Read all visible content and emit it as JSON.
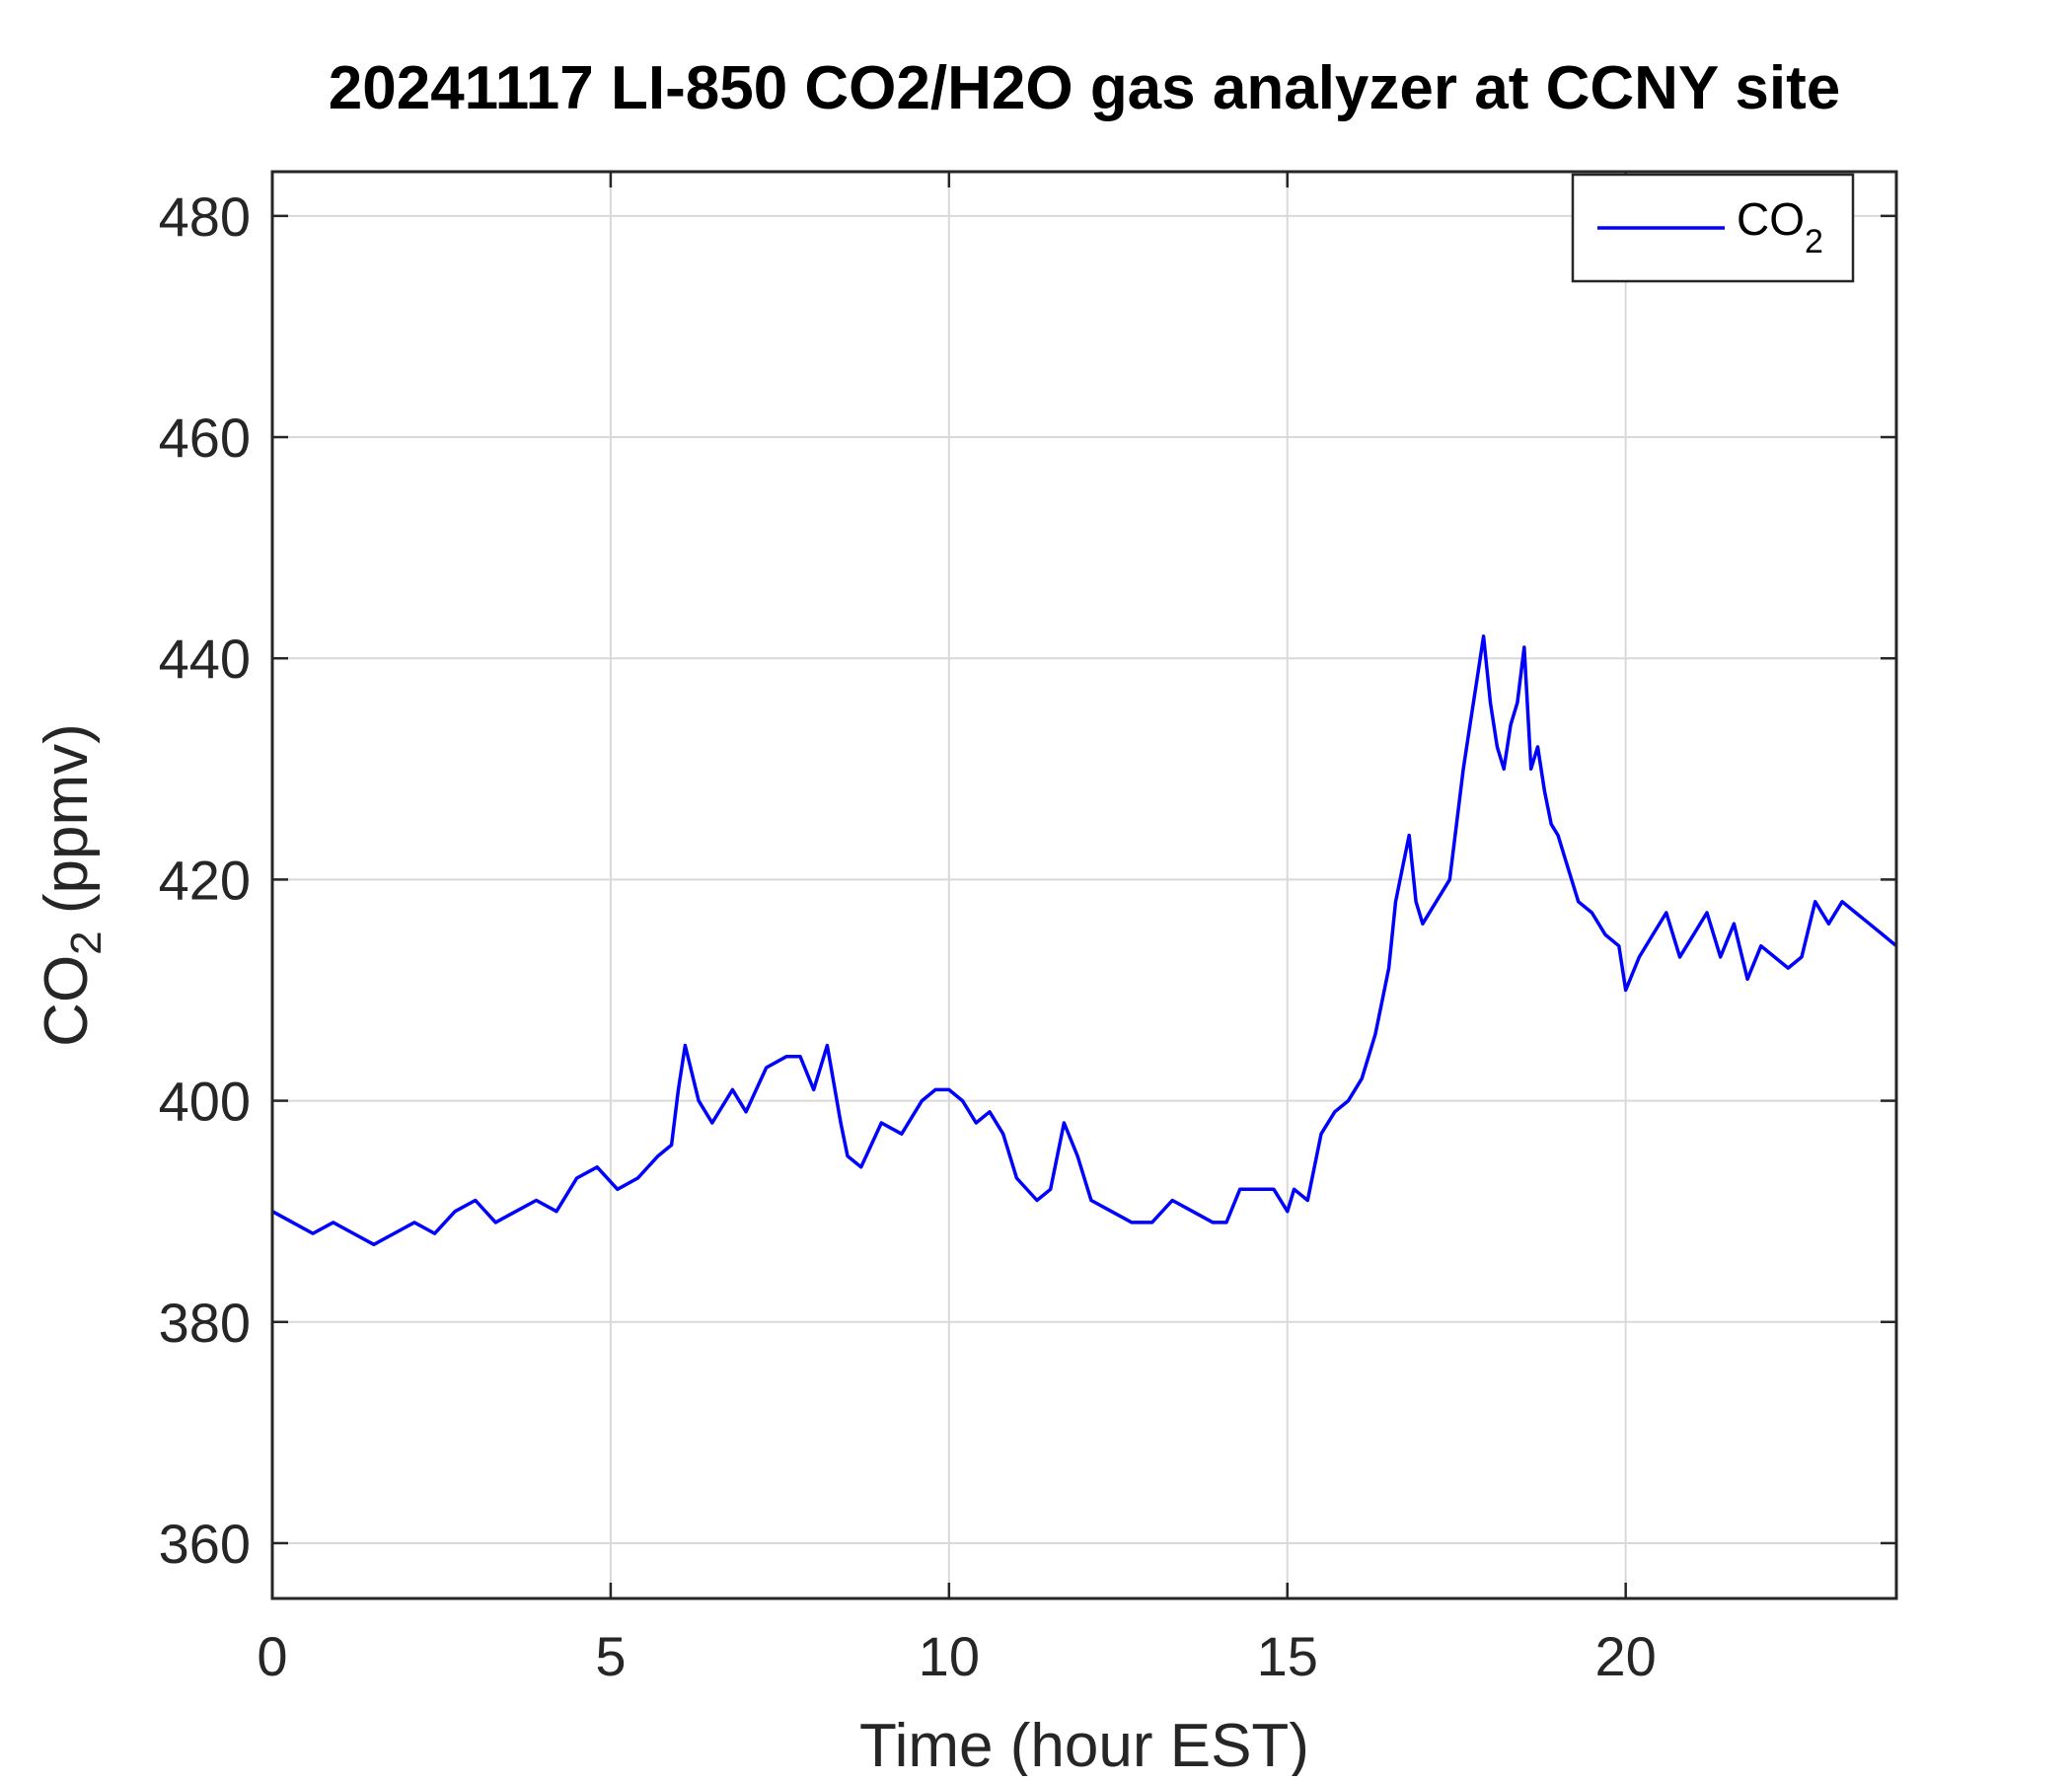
{
  "chart_data": {
    "type": "line",
    "title": "20241117 LI-850 CO2/H2O gas analyzer at CCNY site",
    "xlabel": "Time (hour EST)",
    "ylabel": {
      "main": "CO",
      "subscript": "2",
      "suffix": " (ppmv)"
    },
    "xlim": [
      0,
      24
    ],
    "ylim": [
      355,
      484
    ],
    "xticks": [
      0,
      5,
      10,
      15,
      20
    ],
    "yticks": [
      360,
      380,
      400,
      420,
      440,
      460,
      480
    ],
    "grid": true,
    "legend": {
      "position": "top-right",
      "entries": [
        {
          "main": "CO",
          "subscript": "2"
        }
      ]
    },
    "series": [
      {
        "name": "CO2",
        "color": "#0000ff",
        "x": [
          0,
          0.3,
          0.6,
          0.9,
          1.2,
          1.5,
          1.8,
          2.1,
          2.4,
          2.7,
          3.0,
          3.3,
          3.6,
          3.9,
          4.2,
          4.5,
          4.8,
          5.1,
          5.4,
          5.7,
          5.9,
          6.0,
          6.1,
          6.3,
          6.5,
          6.8,
          7.0,
          7.3,
          7.6,
          7.8,
          8.0,
          8.2,
          8.4,
          8.5,
          8.7,
          9.0,
          9.3,
          9.6,
          9.8,
          10.0,
          10.2,
          10.4,
          10.6,
          10.8,
          11.0,
          11.3,
          11.5,
          11.7,
          11.9,
          12.1,
          12.4,
          12.7,
          13.0,
          13.3,
          13.6,
          13.9,
          14.1,
          14.3,
          14.5,
          14.8,
          15.0,
          15.1,
          15.3,
          15.5,
          15.7,
          15.9,
          16.1,
          16.3,
          16.5,
          16.6,
          16.7,
          16.8,
          16.9,
          17.0,
          17.2,
          17.4,
          17.6,
          17.7,
          17.8,
          17.9,
          18.0,
          18.1,
          18.2,
          18.3,
          18.4,
          18.5,
          18.6,
          18.7,
          18.8,
          18.9,
          19.0,
          19.1,
          19.2,
          19.3,
          19.5,
          19.7,
          19.9,
          20.0,
          20.2,
          20.4,
          20.6,
          20.8,
          21.0,
          21.2,
          21.4,
          21.6,
          21.8,
          22.0,
          22.2,
          22.4,
          22.6,
          22.8,
          23.0,
          23.2,
          23.4,
          23.6,
          23.8,
          24.0
        ],
        "y": [
          390,
          389,
          388,
          389,
          388,
          387,
          388,
          389,
          388,
          390,
          391,
          389,
          390,
          391,
          390,
          393,
          394,
          392,
          393,
          395,
          396,
          401,
          405,
          400,
          398,
          401,
          399,
          403,
          404,
          404,
          401,
          405,
          398,
          395,
          394,
          398,
          397,
          400,
          401,
          401,
          400,
          398,
          399,
          397,
          393,
          391,
          392,
          398,
          395,
          391,
          390,
          389,
          389,
          391,
          390,
          389,
          389,
          392,
          392,
          392,
          390,
          392,
          391,
          397,
          399,
          400,
          402,
          406,
          412,
          418,
          421,
          424,
          418,
          416,
          418,
          420,
          430,
          434,
          438,
          442,
          436,
          432,
          430,
          434,
          436,
          441,
          430,
          432,
          428,
          425,
          424,
          422,
          420,
          418,
          417,
          415,
          414,
          410,
          413,
          415,
          417,
          413,
          415,
          417,
          413,
          416,
          411,
          414,
          413,
          412,
          413,
          418,
          416,
          418,
          417,
          416,
          415,
          414
        ]
      }
    ]
  }
}
